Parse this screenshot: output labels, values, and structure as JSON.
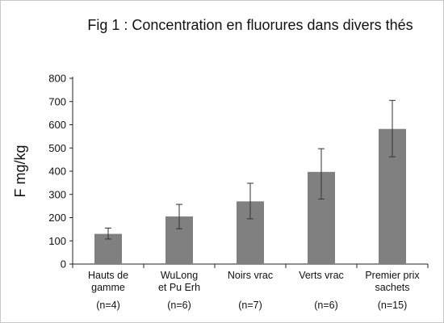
{
  "chart_data": {
    "type": "bar",
    "title": "Fig 1 : Concentration en fluorures dans divers thés",
    "ylabel": "F  mg/kg",
    "xlabel": "",
    "ylim": [
      0,
      800
    ],
    "yticks": [
      0,
      100,
      200,
      300,
      400,
      500,
      600,
      700,
      800
    ],
    "grid": false,
    "legend": "none",
    "categories": [
      {
        "lines": [
          "Hauts de",
          "gamme"
        ],
        "n": "(n=4)"
      },
      {
        "lines": [
          "WuLong",
          "et Pu Erh"
        ],
        "n": "(n=6)"
      },
      {
        "lines": [
          "Noirs vrac"
        ],
        "n": "(n=7)"
      },
      {
        "lines": [
          "Verts  vrac"
        ],
        "n": "(n=6)"
      },
      {
        "lines": [
          "Premier prix",
          "sachets"
        ],
        "n": "(n=15)"
      }
    ],
    "values": [
      130,
      205,
      270,
      397,
      582
    ],
    "error_bars": [
      [
        108,
        155
      ],
      [
        152,
        257
      ],
      [
        195,
        348
      ],
      [
        280,
        497
      ],
      [
        462,
        705
      ]
    ],
    "colors": {
      "bar": "#808080",
      "axis": "#222222",
      "error_bar": "#333333",
      "text": "#111111"
    }
  }
}
